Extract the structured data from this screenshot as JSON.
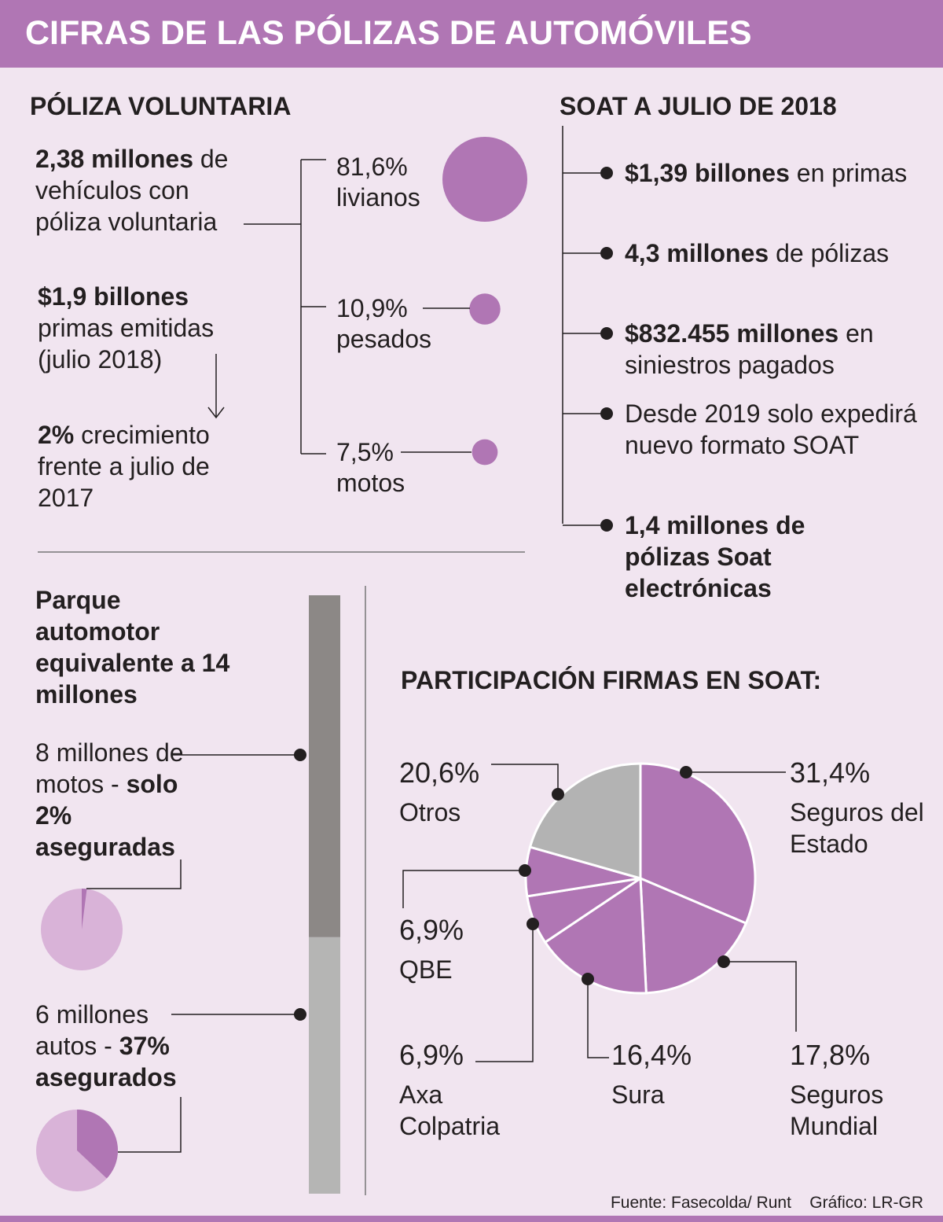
{
  "title": "CIFRAS DE LAS PÓLIZAS DE AUTOMÓVILES",
  "voluntaria": {
    "heading": "PÓLIZA VOLUNTARIA",
    "vehiculos": {
      "bold": "2,38 millones",
      "rest": "de vehículos con póliza voluntaria"
    },
    "primas": {
      "bold": "$1,9 billones",
      "rest": "primas emitidas (julio 2018)"
    },
    "crecimiento": {
      "bold": "2%",
      "rest": "crecimiento frente a julio de 2017"
    }
  },
  "soat": {
    "heading": "SOAT A JULIO DE 2018",
    "items": [
      {
        "bold": "$1,39 billones",
        "rest": "en primas"
      },
      {
        "bold": "4,3 millones",
        "rest": "de pólizas"
      },
      {
        "bold": "$832.455 millones",
        "rest": "en siniestros pagados"
      },
      {
        "bold": "",
        "rest": "Desde 2019 solo expedirá nuevo formato SOAT"
      },
      {
        "bold": "1,4 millones de pólizas Soat electrónicas",
        "rest": ""
      }
    ]
  },
  "parque": {
    "heading": "Parque automotor equivalente a 14 millones",
    "motos_text": "de motos -",
    "autos_text": "autos -"
  },
  "source": "Fuente: Fasecolda/ Runt",
  "credit": "Gráfico: LR-GR",
  "chart_data": [
    {
      "type": "bubble",
      "categories": [
        "livianos",
        "pesados",
        "motos"
      ],
      "values": [
        81.6,
        10.9,
        7.5
      ],
      "value_labels": [
        "81,6%",
        "10,9%",
        "7,5%"
      ],
      "color": "#b076b4"
    },
    {
      "type": "stacked-bar",
      "values": [
        8,
        6
      ],
      "value_labels": [
        "8 millones",
        "6 millones"
      ],
      "colors": [
        "#8c8886",
        "#b5b5b4"
      ]
    },
    {
      "type": "small-pie",
      "values": [
        2,
        37
      ],
      "value_labels": [
        "solo 2% aseguradas",
        "37% asegurados"
      ],
      "color": "#b076b4",
      "background": "#d9b3d8"
    },
    {
      "type": "pie",
      "title": "PARTICIPACIÓN FIRMAS EN SOAT:",
      "categories": [
        "Seguros del Estado",
        "Seguros Mundial",
        "Sura",
        "Axa Colpatria",
        "QBE",
        "Otros"
      ],
      "values": [
        31.4,
        17.8,
        16.4,
        6.9,
        6.9,
        20.6
      ],
      "value_labels": [
        "31,4%",
        "17,8%",
        "16,4%",
        "6,9%",
        "6,9%",
        "20,6%"
      ],
      "colors": [
        "#b076b4",
        "#b076b4",
        "#b076b4",
        "#b076b4",
        "#b076b4",
        "#b3b3b3"
      ]
    }
  ]
}
